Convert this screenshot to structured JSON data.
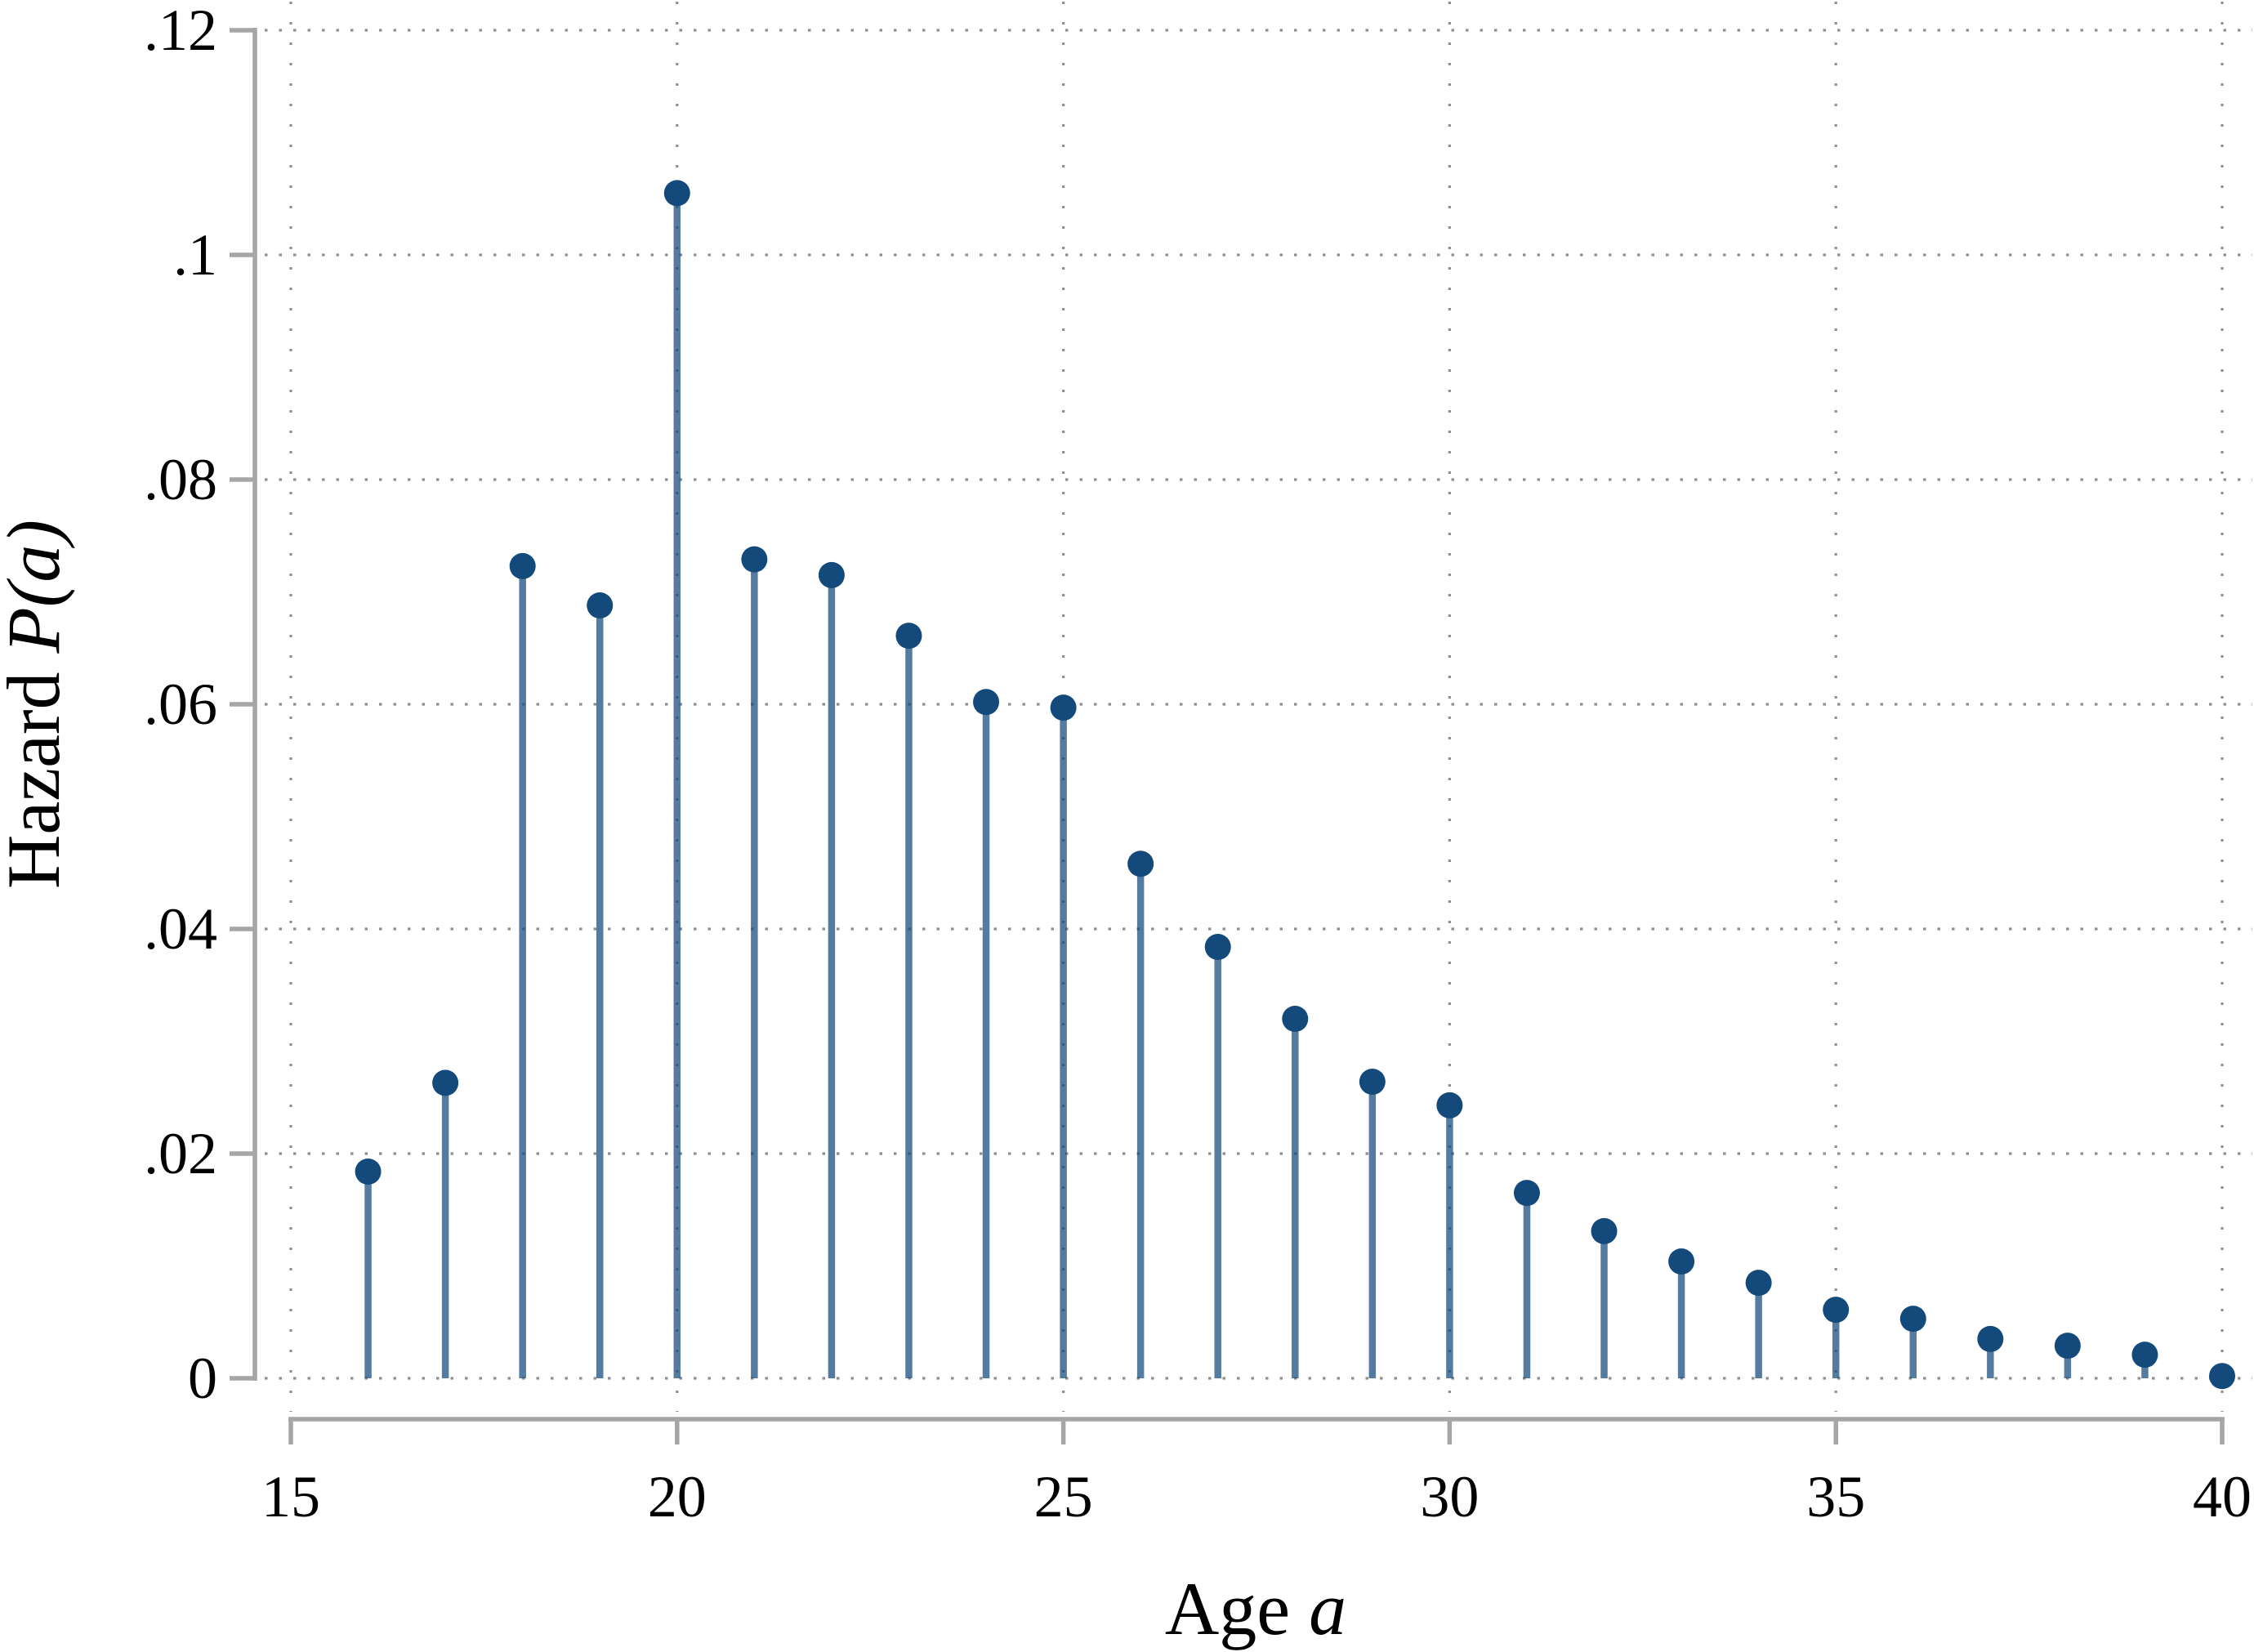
{
  "figure": {
    "background": "#ffffff"
  },
  "chart_data": {
    "type": "stem",
    "title": "",
    "x": [
      16,
      17,
      18,
      19,
      20,
      21,
      22,
      23,
      24,
      25,
      26,
      27,
      28,
      29,
      30,
      31,
      32,
      33,
      34,
      35,
      36,
      37,
      38,
      39,
      40
    ],
    "values": [
      0.0184,
      0.0263,
      0.0723,
      0.0688,
      0.1055,
      0.0729,
      0.0715,
      0.0661,
      0.0602,
      0.0597,
      0.0458,
      0.0384,
      0.032,
      0.0264,
      0.0243,
      0.0165,
      0.0131,
      0.0104,
      0.0085,
      0.0061,
      0.0053,
      0.0035,
      0.0029,
      0.0021,
      0.0002
    ],
    "xlabel": "Age a",
    "ylabel": "Hazard P(a)",
    "xlim": [
      15,
      40
    ],
    "ylim": [
      0,
      0.12
    ],
    "xticks": [
      15,
      20,
      25,
      30,
      35,
      40
    ],
    "yticks": [
      0,
      0.02,
      0.04,
      0.06,
      0.08,
      0.1,
      0.12
    ],
    "xtick_labels": [
      "15",
      "20",
      "25",
      "30",
      "35",
      "40"
    ],
    "ytick_labels": [
      "0",
      ".02",
      ".04",
      ".06",
      ".08",
      ".1",
      ".12"
    ],
    "grid": "dotted-both-axes",
    "legend_position": "none",
    "marker": "filled-circle"
  },
  "x_axis": {
    "title_regular": "Age ",
    "title_italic": "a",
    "tick_labels": [
      "15",
      "20",
      "25",
      "30",
      "35",
      "40"
    ]
  },
  "y_axis": {
    "title_regular": "Hazard ",
    "title_italic": "P(a)",
    "tick_labels": [
      "0",
      ".02",
      ".04",
      ".06",
      ".08",
      ".1",
      ".12"
    ]
  },
  "style": {
    "dot_color": "#134A7B",
    "stem_color": "#134A7B",
    "stem_opacity": 0.72,
    "axis_color": "#A6A6A6",
    "grid_color": "#8F8F8F",
    "text_color": "#000000"
  }
}
